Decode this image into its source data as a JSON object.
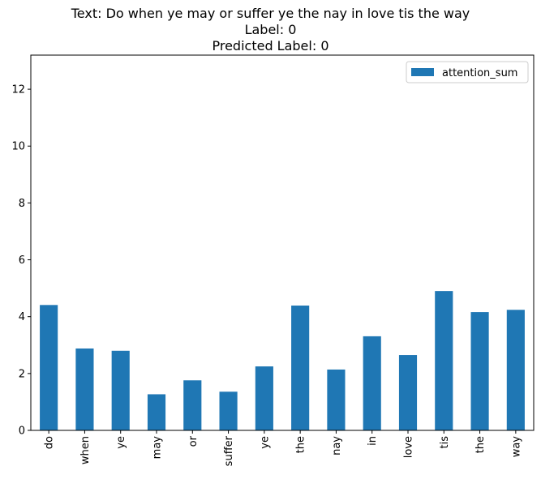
{
  "chart_data": {
    "type": "bar",
    "title_lines": [
      "Text: Do when ye may or suffer ye the nay in love tis the way",
      "Label: 0",
      "Predicted Label: 0"
    ],
    "xlabel": "",
    "ylabel": "",
    "categories": [
      "do",
      "when",
      "ye",
      "may",
      "or",
      "suffer",
      "ye",
      "the",
      "nay",
      "in",
      "love",
      "tis",
      "the",
      "way"
    ],
    "series": [
      {
        "name": "attention_sum",
        "color": "#1f77b4",
        "values": [
          4.41,
          2.88,
          2.8,
          1.27,
          1.76,
          1.36,
          2.25,
          4.39,
          2.14,
          3.31,
          2.65,
          4.9,
          4.16,
          4.24
        ]
      }
    ],
    "ylim": [
      0,
      13.2
    ],
    "yticks": [
      0,
      2,
      4,
      6,
      8,
      10,
      12
    ],
    "grid": false,
    "legend_position": "top-right"
  }
}
